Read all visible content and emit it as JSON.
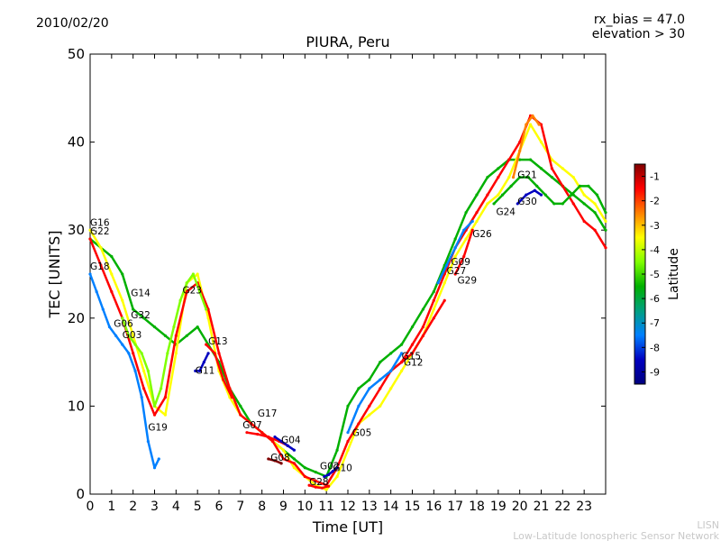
{
  "header": {
    "date": "2010/02/20",
    "title": "PIURA, Peru",
    "rx_bias": "rx_bias = 47.0",
    "elevation": "elevation > 30"
  },
  "footer": {
    "line1": "LISN",
    "line2": "Low-Latitude Ionospheric Sensor Network"
  },
  "colorbar": {
    "label": "Latitude",
    "ticks": [
      "-1",
      "-2",
      "-3",
      "-4",
      "-5",
      "-6",
      "-7",
      "-8",
      "-9"
    ],
    "colors": [
      "#7f0000",
      "#ff0000",
      "#ff8000",
      "#ffff00",
      "#80ff00",
      "#00b000",
      "#00a080",
      "#0080ff",
      "#0000c0",
      "#00007f"
    ]
  },
  "chart_data": {
    "type": "scatter",
    "title": "PIURA, Peru",
    "xlabel": "Time [UT]",
    "ylabel": "TEC [UNITS]",
    "xlim": [
      0,
      24
    ],
    "ylim": [
      0,
      50
    ],
    "x_ticks": [
      "0",
      "1",
      "2",
      "3",
      "4",
      "5",
      "6",
      "7",
      "8",
      "9",
      "10",
      "11",
      "12",
      "13",
      "14",
      "15",
      "16",
      "17",
      "18",
      "19",
      "20",
      "21",
      "22",
      "23"
    ],
    "y_ticks": [
      "0",
      "10",
      "20",
      "30",
      "40",
      "50"
    ],
    "series": [
      {
        "name": "G22",
        "color": "#00b000",
        "x": [
          0.0,
          0.5,
          1.0,
          1.5,
          2.0,
          2.5,
          3.0,
          3.5,
          4.0,
          4.5,
          5.0,
          5.5,
          6.0,
          6.5,
          7.0,
          7.5,
          8.0,
          8.5,
          9.0,
          9.5,
          10.0,
          10.5,
          11.0,
          11.5,
          12.0,
          12.5,
          13.0,
          13.5,
          14.0,
          14.5,
          15.0,
          15.5,
          16.0,
          16.5,
          17.0,
          17.5,
          18.0,
          18.5,
          19.0,
          19.5,
          20.0,
          20.5,
          21.0,
          21.5,
          22.0,
          22.5,
          23.0,
          23.5,
          24.0
        ],
        "y": [
          29,
          28,
          27,
          25,
          21,
          20,
          19,
          18,
          17,
          18,
          19,
          17,
          15,
          12,
          10,
          8,
          7,
          6,
          5,
          4,
          3,
          2.5,
          2,
          5,
          10,
          12,
          13,
          15,
          16,
          17,
          19,
          21,
          23,
          26,
          29,
          32,
          34,
          36,
          37,
          38,
          38,
          38,
          37,
          36,
          35,
          34,
          33,
          32,
          30
        ]
      },
      {
        "name": "G16",
        "color": "#ffff00",
        "x": [
          0.0,
          0.5,
          1.0,
          1.5,
          2.0,
          2.5,
          3.0,
          3.5,
          4.0,
          4.5,
          5.0,
          5.5,
          6.0,
          6.5,
          7.0,
          7.5,
          8.0,
          8.5,
          9.0,
          9.5,
          10.0,
          10.5,
          11.0,
          11.5,
          12.0,
          12.5,
          13.0,
          13.5,
          14.0,
          14.5,
          15.0,
          15.5,
          16.0,
          16.5,
          17.0,
          17.5,
          18.0,
          18.5,
          19.0,
          19.5,
          20.0,
          20.5,
          21.0,
          21.5,
          22.0,
          22.5,
          23.0,
          23.5,
          24.0
        ],
        "y": [
          30,
          28,
          25,
          22,
          18,
          14,
          10,
          9,
          16,
          24,
          25,
          20,
          14,
          11,
          9,
          8,
          7,
          6,
          5,
          3,
          2,
          1,
          0.5,
          2,
          5,
          8,
          9,
          10,
          12,
          14,
          16,
          18,
          21,
          24,
          27,
          29,
          31,
          33,
          34,
          36,
          39,
          42,
          40,
          38,
          37,
          36,
          34,
          33,
          31
        ]
      },
      {
        "name": "G18",
        "color": "#ff0000",
        "x": [
          0.0,
          0.5,
          1.0,
          1.5,
          2.0,
          2.5,
          3.0,
          3.5,
          4.0,
          4.5,
          5.0,
          5.5,
          6.0,
          6.5,
          7.0,
          7.5,
          8.0,
          8.5,
          9.0,
          9.5,
          10.0,
          10.5,
          11.0,
          11.5,
          12.0,
          12.5,
          13.0,
          13.5,
          14.0,
          14.5,
          15.0,
          15.5,
          16.0,
          16.5,
          17.0,
          17.5,
          18.0,
          18.5,
          19.0,
          19.5,
          20.0,
          20.5,
          21.0,
          21.5,
          22.0,
          22.5,
          23.0,
          23.5,
          24.0
        ],
        "y": [
          29,
          26,
          23,
          20,
          16,
          12,
          9,
          11,
          18,
          23,
          24,
          21,
          16,
          12,
          9,
          8,
          7,
          6,
          4,
          3.5,
          2,
          1.5,
          1,
          3,
          6,
          8,
          10,
          12,
          14,
          15,
          17,
          19,
          22,
          25,
          28,
          30,
          32,
          34,
          36,
          38,
          40,
          43,
          42,
          37,
          35,
          33,
          31,
          30,
          28
        ]
      },
      {
        "name": "G03",
        "color": "#0080ff",
        "x": [
          0.0,
          0.3,
          0.6,
          0.9,
          1.2,
          1.5,
          1.8,
          2.1,
          2.4,
          2.7,
          3.0,
          3.2
        ],
        "y": [
          25,
          23,
          21,
          19,
          18,
          17,
          16,
          14,
          11,
          6,
          3,
          4
        ]
      },
      {
        "name": "G32",
        "color": "#80ff00",
        "x": [
          1.5,
          1.8,
          2.1,
          2.4,
          2.7,
          3.0,
          3.3,
          3.6,
          3.9,
          4.2,
          4.5,
          4.8,
          5.1,
          5.4
        ],
        "y": [
          20,
          18,
          17,
          16,
          14,
          10,
          12,
          16,
          19,
          22,
          24,
          25,
          23,
          21
        ]
      },
      {
        "name": "G11",
        "color": "#0000c0",
        "x": [
          4.9,
          5.1,
          5.3,
          5.5
        ],
        "y": [
          14,
          14,
          15,
          16
        ]
      },
      {
        "name": "G13",
        "color": "#ff0000",
        "x": [
          5.4,
          5.8,
          6.2,
          6.6
        ],
        "y": [
          17,
          16,
          13,
          11
        ]
      },
      {
        "name": "G07",
        "color": "#ff0000",
        "x": [
          7.3,
          7.8,
          8.3,
          8.8,
          9.2
        ],
        "y": [
          7,
          6.8,
          6.5,
          6,
          5.5
        ]
      },
      {
        "name": "G04",
        "color": "#0000c0",
        "x": [
          8.6,
          8.9,
          9.2,
          9.5
        ],
        "y": [
          6.5,
          6,
          5.5,
          5
        ]
      },
      {
        "name": "G08",
        "color": "#7f0000",
        "x": [
          8.3,
          8.6,
          8.9
        ],
        "y": [
          4,
          3.8,
          3.5
        ]
      },
      {
        "name": "G28",
        "color": "#ff0000",
        "x": [
          10.2,
          10.5,
          10.8,
          11.1
        ],
        "y": [
          1,
          0.8,
          0.7,
          0.9
        ]
      },
      {
        "name": "G10",
        "color": "#0000c0",
        "x": [
          10.9,
          11.1,
          11.3,
          11.5
        ],
        "y": [
          2,
          2.2,
          2.6,
          3
        ]
      },
      {
        "name": "G05",
        "color": "#0080ff",
        "x": [
          12.0,
          12.5,
          13.0,
          13.5,
          14.0,
          14.5
        ],
        "y": [
          7,
          10,
          12,
          13,
          14,
          16
        ]
      },
      {
        "name": "G12",
        "color": "#ff0000",
        "x": [
          14.5,
          15.0,
          15.5,
          16.0,
          16.5
        ],
        "y": [
          15,
          16,
          18,
          20,
          22
        ]
      },
      {
        "name": "G09",
        "color": "#0080ff",
        "x": [
          16.2,
          16.6,
          17.0,
          17.4,
          17.8
        ],
        "y": [
          24,
          26,
          28,
          30,
          31
        ]
      },
      {
        "name": "G29",
        "color": "#ff0000",
        "x": [
          17.0,
          17.4,
          17.8
        ],
        "y": [
          25,
          27,
          30
        ]
      },
      {
        "name": "G24",
        "color": "#00b000",
        "x": [
          18.8,
          19.2,
          19.6,
          20.0,
          20.4,
          20.8,
          21.2,
          21.6,
          22.0,
          22.4,
          22.8,
          23.2,
          23.6,
          24.0
        ],
        "y": [
          33,
          34,
          35,
          36,
          36,
          35,
          34,
          33,
          33,
          34,
          35,
          35,
          34,
          32
        ]
      },
      {
        "name": "G30",
        "color": "#0000c0",
        "x": [
          19.9,
          20.3,
          20.7,
          21.0
        ],
        "y": [
          33,
          34,
          34.5,
          34
        ]
      },
      {
        "name": "G21",
        "color": "#ff8000",
        "x": [
          19.7,
          20.0,
          20.3,
          20.6,
          20.9
        ],
        "y": [
          36,
          39,
          42,
          43,
          42
        ]
      }
    ],
    "point_labels": [
      {
        "text": "G16",
        "x": 0.0,
        "y": 30.5
      },
      {
        "text": "G22",
        "x": 0.0,
        "y": 29.5
      },
      {
        "text": "G18",
        "x": 0.0,
        "y": 25.5
      },
      {
        "text": "G14",
        "x": 1.9,
        "y": 22.5
      },
      {
        "text": "G32",
        "x": 1.9,
        "y": 20.0
      },
      {
        "text": "G06",
        "x": 1.1,
        "y": 19.0
      },
      {
        "text": "G03",
        "x": 1.5,
        "y": 17.7
      },
      {
        "text": "G23",
        "x": 4.3,
        "y": 22.8
      },
      {
        "text": "G13",
        "x": 5.5,
        "y": 17.0
      },
      {
        "text": "G11",
        "x": 4.9,
        "y": 13.7
      },
      {
        "text": "G19",
        "x": 2.7,
        "y": 7.2
      },
      {
        "text": "G17",
        "x": 7.8,
        "y": 8.8
      },
      {
        "text": "G07",
        "x": 7.1,
        "y": 7.5
      },
      {
        "text": "G04",
        "x": 8.9,
        "y": 5.8
      },
      {
        "text": "G08",
        "x": 8.4,
        "y": 3.8
      },
      {
        "text": "G02",
        "x": 10.7,
        "y": 2.8
      },
      {
        "text": "G10",
        "x": 11.3,
        "y": 2.6
      },
      {
        "text": "G28",
        "x": 10.2,
        "y": 1.0
      },
      {
        "text": "G05",
        "x": 12.2,
        "y": 6.6
      },
      {
        "text": "G15",
        "x": 14.5,
        "y": 15.3
      },
      {
        "text": "G12",
        "x": 14.6,
        "y": 14.6
      },
      {
        "text": "G09",
        "x": 16.8,
        "y": 26.0
      },
      {
        "text": "G27",
        "x": 16.6,
        "y": 25.0
      },
      {
        "text": "G29",
        "x": 17.1,
        "y": 23.9
      },
      {
        "text": "G26",
        "x": 17.8,
        "y": 29.2
      },
      {
        "text": "G24",
        "x": 18.9,
        "y": 31.7
      },
      {
        "text": "G21",
        "x": 19.9,
        "y": 35.9
      },
      {
        "text": "G30",
        "x": 19.9,
        "y": 32.9
      }
    ]
  }
}
